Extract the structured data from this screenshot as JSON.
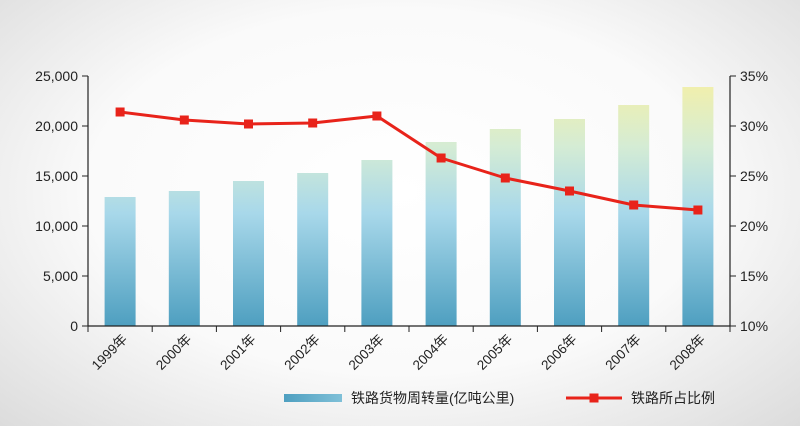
{
  "chart_data": {
    "type": "bar",
    "categories": [
      "1999年",
      "2000年",
      "2001年",
      "2002年",
      "2003年",
      "2004年",
      "2005年",
      "2006年",
      "2007年",
      "2008年"
    ],
    "series": [
      {
        "name": "铁路货物周转量(亿吨公里)",
        "type": "bar",
        "axis": "left",
        "values": [
          12900,
          13500,
          14500,
          15300,
          16600,
          18400,
          19700,
          20700,
          22100,
          23900
        ]
      },
      {
        "name": "铁路所占比例",
        "type": "line",
        "axis": "right",
        "values": [
          31.4,
          30.6,
          30.2,
          30.3,
          31.0,
          26.8,
          24.8,
          23.5,
          22.1,
          21.6
        ]
      }
    ],
    "y_left": {
      "ylim": [
        0,
        25000
      ],
      "ticks": [
        "0",
        "5,000",
        "10,000",
        "15,000",
        "20,000",
        "25,000"
      ]
    },
    "y_right": {
      "ylim": [
        10,
        35
      ],
      "ticks": [
        "10%",
        "15%",
        "20%",
        "25%",
        "30%",
        "35%"
      ]
    },
    "legend_position": "bottom-right",
    "grid": false,
    "colors": {
      "bar_bottom": "#4e9fc0",
      "bar_mid": "#a8d8ea",
      "bar_top": "#f5f0a6",
      "line": "#e8231a",
      "marker": "#e8231a",
      "axis": "#222222"
    }
  }
}
